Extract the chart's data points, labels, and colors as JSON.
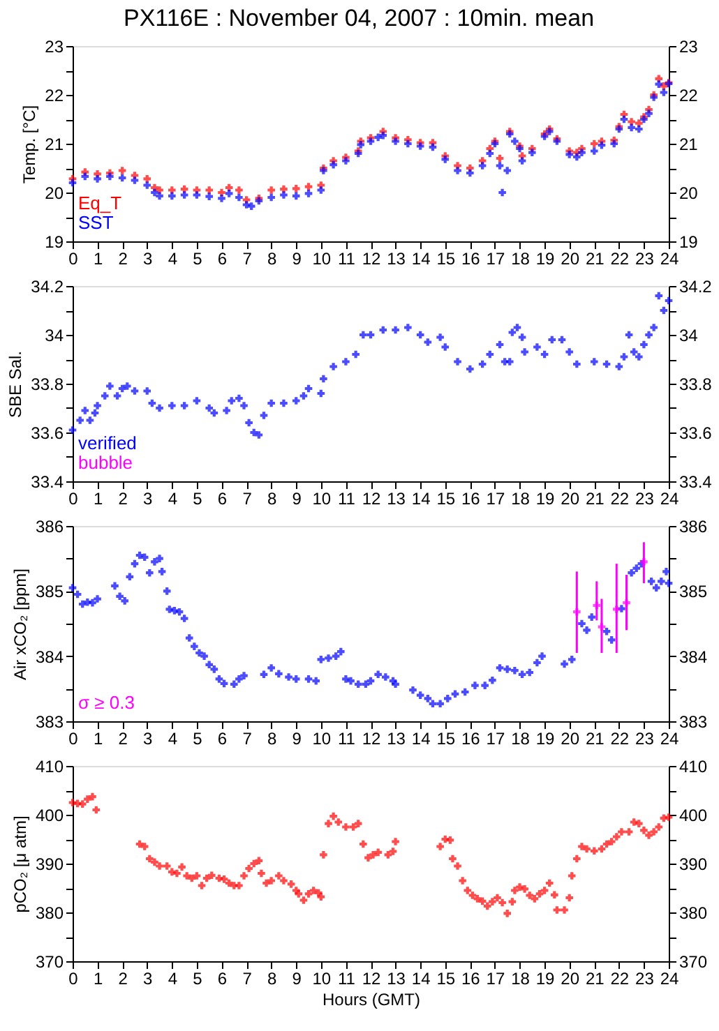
{
  "chart_data": [
    {
      "type": "scatter",
      "title": "PX116E : November 04, 2007 : 10min. mean",
      "ylabel": "Temp. [°C]",
      "marker": "cross",
      "legend": "bottom left",
      "grid": false,
      "xlim": [
        0,
        24
      ],
      "xticks": [
        0,
        1,
        2,
        3,
        4,
        5,
        6,
        7,
        8,
        9,
        10,
        11,
        12,
        13,
        14,
        15,
        16,
        17,
        18,
        19,
        20,
        21,
        22,
        23,
        24
      ],
      "ylim": [
        19,
        23
      ],
      "yticks": [
        19,
        {
          "value": 19.5,
          "label": null
        },
        20,
        {
          "value": 20.5,
          "label": null
        },
        21,
        {
          "value": 21.5,
          "label": null
        },
        22,
        {
          "value": 22.5,
          "label": null
        },
        23
      ],
      "y2lim": [
        19,
        23
      ],
      "y2ticks": [
        19,
        {
          "value": 19.5,
          "label": null
        },
        20,
        {
          "value": 20.5,
          "label": null
        },
        21,
        {
          "value": 21.5,
          "label": null
        },
        22,
        {
          "value": 22.5,
          "label": null
        },
        23
      ],
      "series": [
        {
          "name": "Eq_T",
          "color": "#ff0000",
          "x": [
            0,
            0.5,
            1,
            1.5,
            2,
            2.5,
            3,
            3.3,
            3.5,
            4,
            4.5,
            5,
            5.5,
            6,
            6.3,
            6.7,
            7,
            7.5,
            8,
            8.5,
            9,
            9.5,
            10,
            10.1,
            10.5,
            11,
            11.5,
            11.6,
            12,
            12.5,
            13,
            13.5,
            14,
            14.5,
            15,
            15.5,
            16,
            16.5,
            16.8,
            17,
            17.2,
            17.6,
            18,
            18.1,
            18.5,
            19,
            19.2,
            19.5,
            20,
            20.3,
            20.5,
            21,
            21.3,
            21.8,
            22,
            22.2,
            22.5,
            22.8,
            23,
            23.2,
            23.4,
            23.6,
            23.8,
            24
          ],
          "values": [
            20.28,
            20.42,
            20.38,
            20.4,
            20.45,
            20.35,
            20.28,
            20.1,
            20.05,
            20.05,
            20.07,
            20.05,
            20.05,
            20.0,
            20.1,
            20.05,
            19.85,
            19.88,
            20.05,
            20.07,
            20.08,
            20.12,
            20.15,
            20.5,
            20.65,
            20.72,
            20.85,
            21.05,
            21.12,
            21.25,
            21.12,
            21.08,
            21.02,
            21.02,
            20.75,
            20.55,
            20.5,
            20.65,
            20.9,
            21.05,
            20.7,
            21.25,
            20.95,
            20.75,
            20.9,
            21.2,
            21.3,
            21.1,
            20.85,
            20.82,
            20.9,
            21.0,
            21.05,
            21.07,
            21.35,
            21.6,
            21.45,
            21.42,
            21.55,
            21.7,
            22.0,
            22.33,
            22.18,
            22.25
          ]
        },
        {
          "name": "SST",
          "color": "#0000ff",
          "x": [
            0,
            0.5,
            1,
            1.5,
            2,
            2.5,
            3,
            3.3,
            3.5,
            4,
            4.5,
            5,
            5.5,
            6,
            6.3,
            6.7,
            7,
            7.2,
            7.5,
            8,
            8.5,
            9,
            9.5,
            10,
            10.1,
            10.5,
            11,
            11.5,
            11.6,
            12,
            12.3,
            12.5,
            13,
            13.5,
            14,
            14.5,
            15,
            15.5,
            16,
            16.5,
            16.8,
            17,
            17.2,
            17.3,
            17.5,
            17.6,
            17.8,
            18,
            18.1,
            18.5,
            19,
            19.2,
            19.5,
            20,
            20.3,
            20.5,
            21,
            21.3,
            21.8,
            22,
            22.2,
            22.5,
            22.8,
            23,
            23.2,
            23.4,
            23.6,
            23.8,
            24
          ],
          "values": [
            20.2,
            20.33,
            20.28,
            20.33,
            20.3,
            20.25,
            20.15,
            20.0,
            19.93,
            19.93,
            19.95,
            19.95,
            19.92,
            19.88,
            19.98,
            19.9,
            19.75,
            19.72,
            19.83,
            19.9,
            19.95,
            19.93,
            19.98,
            20.05,
            20.45,
            20.57,
            20.65,
            20.8,
            20.98,
            21.05,
            21.13,
            21.17,
            21.05,
            21.0,
            20.95,
            20.93,
            20.68,
            20.45,
            20.4,
            20.55,
            20.8,
            21.0,
            20.55,
            20.0,
            20.45,
            21.2,
            21.05,
            20.9,
            20.65,
            20.82,
            21.15,
            21.25,
            21.05,
            20.78,
            20.73,
            20.82,
            20.85,
            20.97,
            21.0,
            21.3,
            21.5,
            21.33,
            21.3,
            21.5,
            21.62,
            21.95,
            22.22,
            22.05,
            22.23
          ]
        }
      ]
    },
    {
      "type": "scatter",
      "ylabel": "SBE Sal.",
      "marker": "cross",
      "legend": "bottom left",
      "grid": false,
      "xlim": [
        0,
        24
      ],
      "xticks": [
        0,
        1,
        2,
        3,
        4,
        5,
        6,
        7,
        8,
        9,
        10,
        11,
        12,
        13,
        14,
        15,
        16,
        17,
        18,
        19,
        20,
        21,
        22,
        23,
        24
      ],
      "ylim": [
        33.4,
        34.2
      ],
      "yticks": [
        33.4,
        {
          "value": 33.5,
          "label": null
        },
        33.6,
        {
          "value": 33.7,
          "label": null
        },
        33.8,
        {
          "value": 33.9,
          "label": null
        },
        34,
        {
          "value": 34.1,
          "label": null
        },
        34.2
      ],
      "y2lim": [
        33.4,
        34.2
      ],
      "y2ticks": [
        33.4,
        {
          "value": 33.5,
          "label": null
        },
        33.6,
        {
          "value": 33.7,
          "label": null
        },
        33.8,
        {
          "value": 33.9,
          "label": null
        },
        34,
        {
          "value": 34.1,
          "label": null
        },
        34.2
      ],
      "series": [
        {
          "name": "verified",
          "color": "#0000ff",
          "x": [
            0,
            0.3,
            0.5,
            0.7,
            0.9,
            1,
            1.3,
            1.5,
            1.8,
            2,
            2.2,
            2.5,
            3,
            3.2,
            3.5,
            4,
            4.5,
            5,
            5.5,
            5.7,
            6.2,
            6.4,
            6.7,
            6.9,
            7.1,
            7.3,
            7.5,
            7.7,
            8,
            8.5,
            9,
            9.3,
            9.5,
            10,
            10.1,
            10.5,
            11,
            11.4,
            11.7,
            12,
            12.5,
            13,
            13.5,
            14,
            14.3,
            14.8,
            15,
            15.5,
            16,
            16.5,
            16.8,
            17.2,
            17.4,
            17.6,
            17.7,
            17.9,
            18.1,
            18.2,
            18.7,
            19,
            19.3,
            19.7,
            20,
            20.3,
            21,
            21.5,
            22,
            22.2,
            22.4,
            22.6,
            22.8,
            23,
            23.2,
            23.4,
            23.6,
            23.8,
            24
          ],
          "values": [
            33.61,
            33.65,
            33.69,
            33.65,
            33.68,
            33.71,
            33.75,
            33.79,
            33.75,
            33.78,
            33.79,
            33.77,
            33.77,
            33.72,
            33.7,
            33.71,
            33.71,
            33.73,
            33.7,
            33.68,
            33.69,
            33.73,
            33.74,
            33.71,
            33.64,
            33.6,
            33.59,
            33.67,
            33.72,
            33.72,
            33.73,
            33.75,
            33.78,
            33.76,
            33.82,
            33.87,
            33.89,
            33.92,
            34.0,
            34.0,
            34.02,
            34.02,
            34.03,
            34.0,
            33.97,
            33.99,
            33.95,
            33.89,
            33.86,
            33.88,
            33.92,
            33.96,
            33.89,
            33.89,
            34.01,
            34.03,
            33.99,
            33.93,
            33.95,
            33.92,
            33.98,
            33.98,
            33.93,
            33.88,
            33.89,
            33.88,
            33.87,
            33.91,
            34.0,
            33.93,
            33.91,
            33.96,
            34.0,
            34.03,
            34.16,
            34.1,
            34.14
          ]
        },
        {
          "name": "bubble",
          "color": "#ff00ff"
        }
      ]
    },
    {
      "type": "scatter",
      "ylabel": "Air xCO₂ [ppm]",
      "marker": "cross",
      "legend": "bottom left",
      "grid": false,
      "xlim": [
        0,
        24
      ],
      "xticks": [
        0,
        1,
        2,
        3,
        4,
        5,
        6,
        7,
        8,
        9,
        10,
        11,
        12,
        13,
        14,
        15,
        16,
        17,
        18,
        19,
        20,
        21,
        22,
        23,
        24
      ],
      "ylim": [
        383,
        386
      ],
      "yticks": [
        383,
        {
          "value": 383.5,
          "label": null
        },
        384,
        {
          "value": 384.5,
          "label": null
        },
        385,
        {
          "value": 385.5,
          "label": null
        },
        386
      ],
      "y2lim": [
        383,
        386
      ],
      "y2ticks": [
        383,
        {
          "value": 383.5,
          "label": null
        },
        384,
        {
          "value": 384.5,
          "label": null
        },
        385,
        {
          "value": 385.5,
          "label": null
        },
        386
      ],
      "series": [
        {
          "color": "#0000ff",
          "x": [
            0,
            0.2,
            0.4,
            0.6,
            0.8,
            1.0,
            1.35,
            1.7,
            1.9,
            2.1,
            2.3,
            2.5,
            2.7,
            2.9,
            3.1,
            3.3,
            3.5,
            3.6,
            3.8,
            3.9,
            4.1,
            4.3,
            4.5,
            4.7,
            4.9,
            5.1,
            5.3,
            5.5,
            5.7,
            5.9,
            6.1,
            6.5,
            6.7,
            6.9,
            7.3,
            7.7,
            8,
            8.3,
            8.7,
            9,
            9.5,
            9.8,
            10.0,
            10.3,
            10.6,
            10.8,
            11.0,
            11.2,
            11.5,
            11.8,
            12.0,
            12.3,
            12.6,
            12.9,
            13.0,
            13.4,
            13.7,
            14.0,
            14.3,
            14.5,
            14.8,
            15.1,
            15.4,
            15.8,
            16.2,
            16.6,
            16.9,
            17.2,
            17.5,
            17.8,
            18.1,
            18.4,
            18.7,
            18.9,
            19.4,
            19.8,
            20.1,
            20.5,
            20.7,
            20.9,
            21.5,
            21.7,
            22.1,
            22.5,
            22.7,
            22.9,
            23.3,
            23.5,
            23.7,
            23.9,
            24.0
          ],
          "values": [
            385.05,
            384.95,
            384.8,
            384.83,
            384.82,
            384.88,
            null,
            385.08,
            384.92,
            384.85,
            385.22,
            385.42,
            385.55,
            385.52,
            385.28,
            385.45,
            385.5,
            385.3,
            385.0,
            384.72,
            384.7,
            384.68,
            384.58,
            384.28,
            384.15,
            384.05,
            384.0,
            383.87,
            383.8,
            383.65,
            383.58,
            383.57,
            383.65,
            383.7,
            null,
            383.72,
            383.82,
            383.73,
            383.68,
            383.65,
            383.65,
            383.62,
            383.95,
            383.97,
            384.0,
            384.07,
            383.65,
            383.62,
            383.57,
            383.57,
            383.62,
            383.72,
            383.68,
            383.62,
            383.57,
            null,
            383.48,
            383.4,
            383.35,
            383.27,
            383.27,
            383.35,
            383.42,
            383.45,
            383.55,
            383.55,
            383.63,
            383.82,
            383.8,
            383.78,
            383.72,
            383.75,
            383.9,
            384.0,
            null,
            383.88,
            383.95,
            384.5,
            384.4,
            384.6,
            384.38,
            384.25,
            384.73,
            385.28,
            385.35,
            385.42,
            385.15,
            385.05,
            385.15,
            385.3,
            385.12
          ]
        },
        {
          "name": "σ ≥ 0.3",
          "color": "#ff00ff",
          "x": [
            20.3,
            21.1,
            21.3,
            21.9,
            22.3,
            23.0
          ],
          "values": [
            384.68,
            384.78,
            384.45,
            384.72,
            384.82,
            385.45
          ],
          "errors": [
            [
              384.05,
              385.3
            ],
            [
              384.55,
              385.15
            ],
            [
              384.05,
              384.88
            ],
            [
              384.05,
              385.42
            ],
            [
              384.4,
              385.25
            ],
            [
              385.12,
              385.75
            ]
          ]
        }
      ]
    },
    {
      "type": "scatter",
      "ylabel": "pCO₂ [μ atm]",
      "xlabel": "Hours (GMT)",
      "marker": "cross",
      "grid": false,
      "xlim": [
        0,
        24
      ],
      "xticks": [
        0,
        1,
        2,
        3,
        4,
        5,
        6,
        7,
        8,
        9,
        10,
        11,
        12,
        13,
        14,
        15,
        16,
        17,
        18,
        19,
        20,
        21,
        22,
        23,
        24
      ],
      "ylim": [
        370,
        410
      ],
      "yticks": [
        370,
        {
          "value": 375,
          "label": null
        },
        380,
        {
          "value": 385,
          "label": null
        },
        390,
        {
          "value": 395,
          "label": null
        },
        400,
        {
          "value": 405,
          "label": null
        },
        410
      ],
      "y2lim": [
        370,
        410
      ],
      "y2ticks": [
        370,
        {
          "value": 375,
          "label": null
        },
        380,
        {
          "value": 385,
          "label": null
        },
        390,
        {
          "value": 395,
          "label": null
        },
        400,
        {
          "value": 405,
          "label": null
        },
        410
      ],
      "series": [
        {
          "color": "#ff0000",
          "x": [
            0,
            0.2,
            0.4,
            0.6,
            0.8,
            0.95,
            1.8,
            2.7,
            2.9,
            3.1,
            3.3,
            3.5,
            3.8,
            4,
            4.2,
            4.4,
            4.6,
            4.8,
            5,
            5.2,
            5.4,
            5.6,
            5.9,
            6.1,
            6.3,
            6.5,
            6.7,
            6.9,
            7.1,
            7.3,
            7.5,
            7.6,
            7.8,
            8,
            8.3,
            8.5,
            8.8,
            9,
            9.1,
            9.3,
            9.5,
            9.7,
            9.9,
            10.0,
            10.1,
            10.3,
            10.5,
            10.7,
            11,
            11.3,
            11.5,
            11.7,
            11.9,
            12.1,
            12.3,
            12.7,
            12.9,
            13.0,
            13.8,
            14.8,
            15,
            15.2,
            15.3,
            15.5,
            15.7,
            15.9,
            16.1,
            16.3,
            16.5,
            16.7,
            16.9,
            17.1,
            17.3,
            17.5,
            17.7,
            17.8,
            18,
            18.2,
            18.4,
            18.6,
            18.8,
            19,
            19.2,
            19.4,
            19.5,
            19.8,
            20.0,
            20.1,
            20.3,
            20.5,
            20.7,
            21,
            21.3,
            21.5,
            21.7,
            21.9,
            22.1,
            22.4,
            22.6,
            22.8,
            23,
            23.2,
            23.4,
            23.6,
            23.8,
            24
          ],
          "values": [
            402.5,
            402.3,
            402.2,
            403.2,
            403.7,
            401.0,
            null,
            394,
            393.5,
            391,
            390.3,
            389.5,
            389.5,
            388.3,
            388,
            389.3,
            387.5,
            387,
            387.5,
            385.5,
            387,
            387.6,
            387,
            386.8,
            386,
            385.5,
            385.5,
            387.5,
            389,
            390,
            390.6,
            388,
            386,
            386.5,
            387.5,
            386.5,
            385.8,
            384.5,
            383.8,
            382.5,
            383.8,
            384.5,
            384,
            383.2,
            391.8,
            398.2,
            399.7,
            398.5,
            397.5,
            397.5,
            398.2,
            394,
            391.2,
            391.8,
            392.3,
            391.8,
            392.5,
            394.5,
            null,
            393.5,
            395,
            394.8,
            391,
            389.5,
            386.5,
            384.5,
            383.5,
            382.8,
            382.3,
            381.3,
            382.2,
            383,
            382,
            379.8,
            382.2,
            384.5,
            385.2,
            384.8,
            383.5,
            382.8,
            383.8,
            384.5,
            386,
            383.6,
            380.5,
            380.5,
            383,
            387.5,
            391,
            393.5,
            393,
            392.6,
            393,
            394,
            394.5,
            395.5,
            396.5,
            396.5,
            398.5,
            398.2,
            396.8,
            395.8,
            396.5,
            397.5,
            399.3,
            399.5
          ]
        }
      ]
    }
  ]
}
